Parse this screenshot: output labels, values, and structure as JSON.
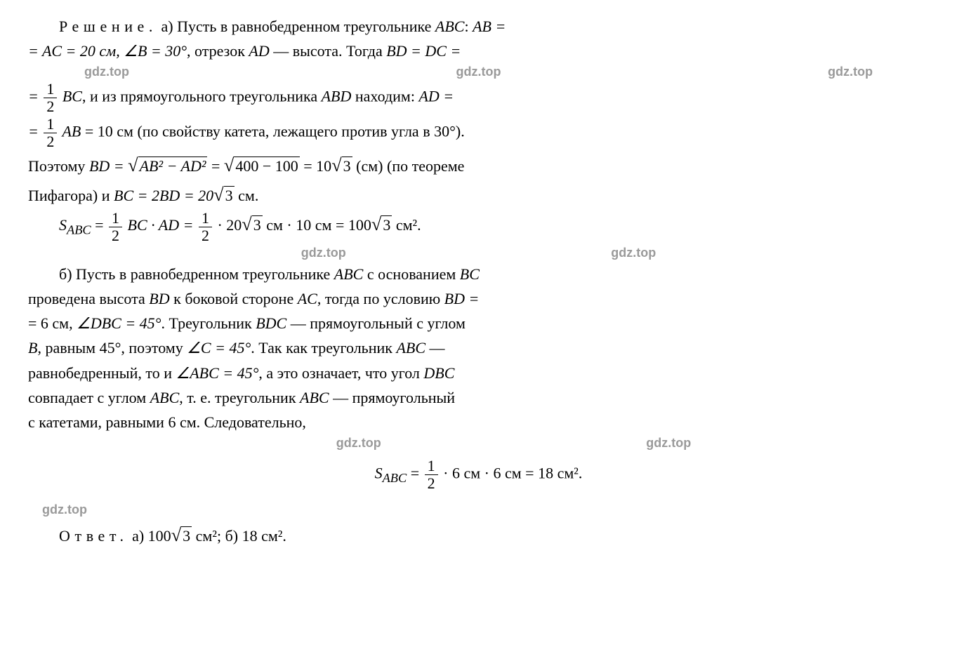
{
  "watermark": "gdz.top",
  "colors": {
    "text": "#000000",
    "watermark": "#9a9a9a",
    "background": "#ffffff"
  },
  "typography": {
    "body_font": "Times New Roman",
    "body_size_pt": 16,
    "watermark_font": "Arial",
    "watermark_size_pt": 14
  },
  "p1": {
    "label": "Решение.",
    "text_a": "а) Пусть в равнобедренном треугольнике ",
    "abc": "ABC",
    "colon": ": ",
    "ab_eq": "AB =",
    "eq_ac": "= AC = 20 см, ",
    "angle_b": "∠B = 30°",
    "segment": ", отрезок ",
    "ad": "AD",
    "height": " — высота. Тогда ",
    "bd_dc": "BD = DC ="
  },
  "p2": {
    "eq_half": "= ",
    "frac_num1": "1",
    "frac_den1": "2",
    "bc": " BC",
    "text1": ", и из прямоугольного треугольника ",
    "abd": "ABD",
    "text2": " находим: ",
    "ad_eq": "AD ="
  },
  "p3": {
    "eq": "= ",
    "frac_num": "1",
    "frac_den": "2",
    "ab": " AB",
    "val": " = 10 см (по свойству катета, лежащего против угла в 30°)."
  },
  "p4": {
    "text1": "Поэтому ",
    "bd_eq": "BD = ",
    "sqrt1_inner": "AB² − AD²",
    "eq2": " = ",
    "sqrt2_inner": "400 − 100",
    "eq3": " = 10",
    "sqrt3_inner": "3",
    "cm": " (см) (по теореме"
  },
  "p5": {
    "text": "Пифагора) и ",
    "bc_eq": "BC = 2BD = 20",
    "sqrt_inner": "3",
    "cm": " см."
  },
  "p6": {
    "s_abc": "S",
    "sub_abc": "ABC",
    "eq1": " = ",
    "frac_num1": "1",
    "frac_den1": "2",
    "bc_ad": " BC · AD = ",
    "frac_num2": "1",
    "frac_den2": "2",
    "val": " · 20",
    "sqrt_inner": "3",
    "rest": " см · 10 см = 100",
    "sqrt_inner2": "3",
    "cm2": " см²."
  },
  "p7": {
    "text1": "б) Пусть в равнобедренном треугольнике ",
    "abc": "ABC",
    "text2": " с основанием ",
    "bc": "BC"
  },
  "p8": {
    "text1": "проведена высота ",
    "bd": "BD",
    "text2": " к боковой стороне ",
    "ac": "AC",
    "text3": ", тогда по условию ",
    "bd_eq": "BD ="
  },
  "p9": {
    "text1": "= 6 см, ",
    "angle": "∠DBC = 45°",
    "text2": ". Треугольник ",
    "bdc": "BDC",
    "text3": " — прямоугольный с углом"
  },
  "p10": {
    "b": "B",
    "text1": ", равным 45°, поэтому ",
    "angle_c": "∠C = 45°",
    "text2": ". Так как треугольник ",
    "abc": "ABC",
    "dash": " —"
  },
  "p11": {
    "text1": "равнобедренный, то и ",
    "angle": "∠ABC = 45°",
    "text2": ", а это означает, что угол ",
    "dbc": "DBC"
  },
  "p12": {
    "text1": "совпадает с углом ",
    "abc": "ABC",
    "text2": ", т. е. треугольник ",
    "abc2": "ABC",
    "text3": " — прямоугольный"
  },
  "p13": {
    "text": "с катетами, равными 6 см. Следовательно,"
  },
  "formula": {
    "s": "S",
    "sub": "ABC",
    "eq": " = ",
    "frac_num": "1",
    "frac_den": "2",
    "rest": " · 6 см · 6 см = 18 см²."
  },
  "answer": {
    "label": "Ответ.",
    "text_a": " а) 100",
    "sqrt_inner": "3",
    "cm2_a": " см²; ",
    "text_b": "б) 18 см²."
  }
}
